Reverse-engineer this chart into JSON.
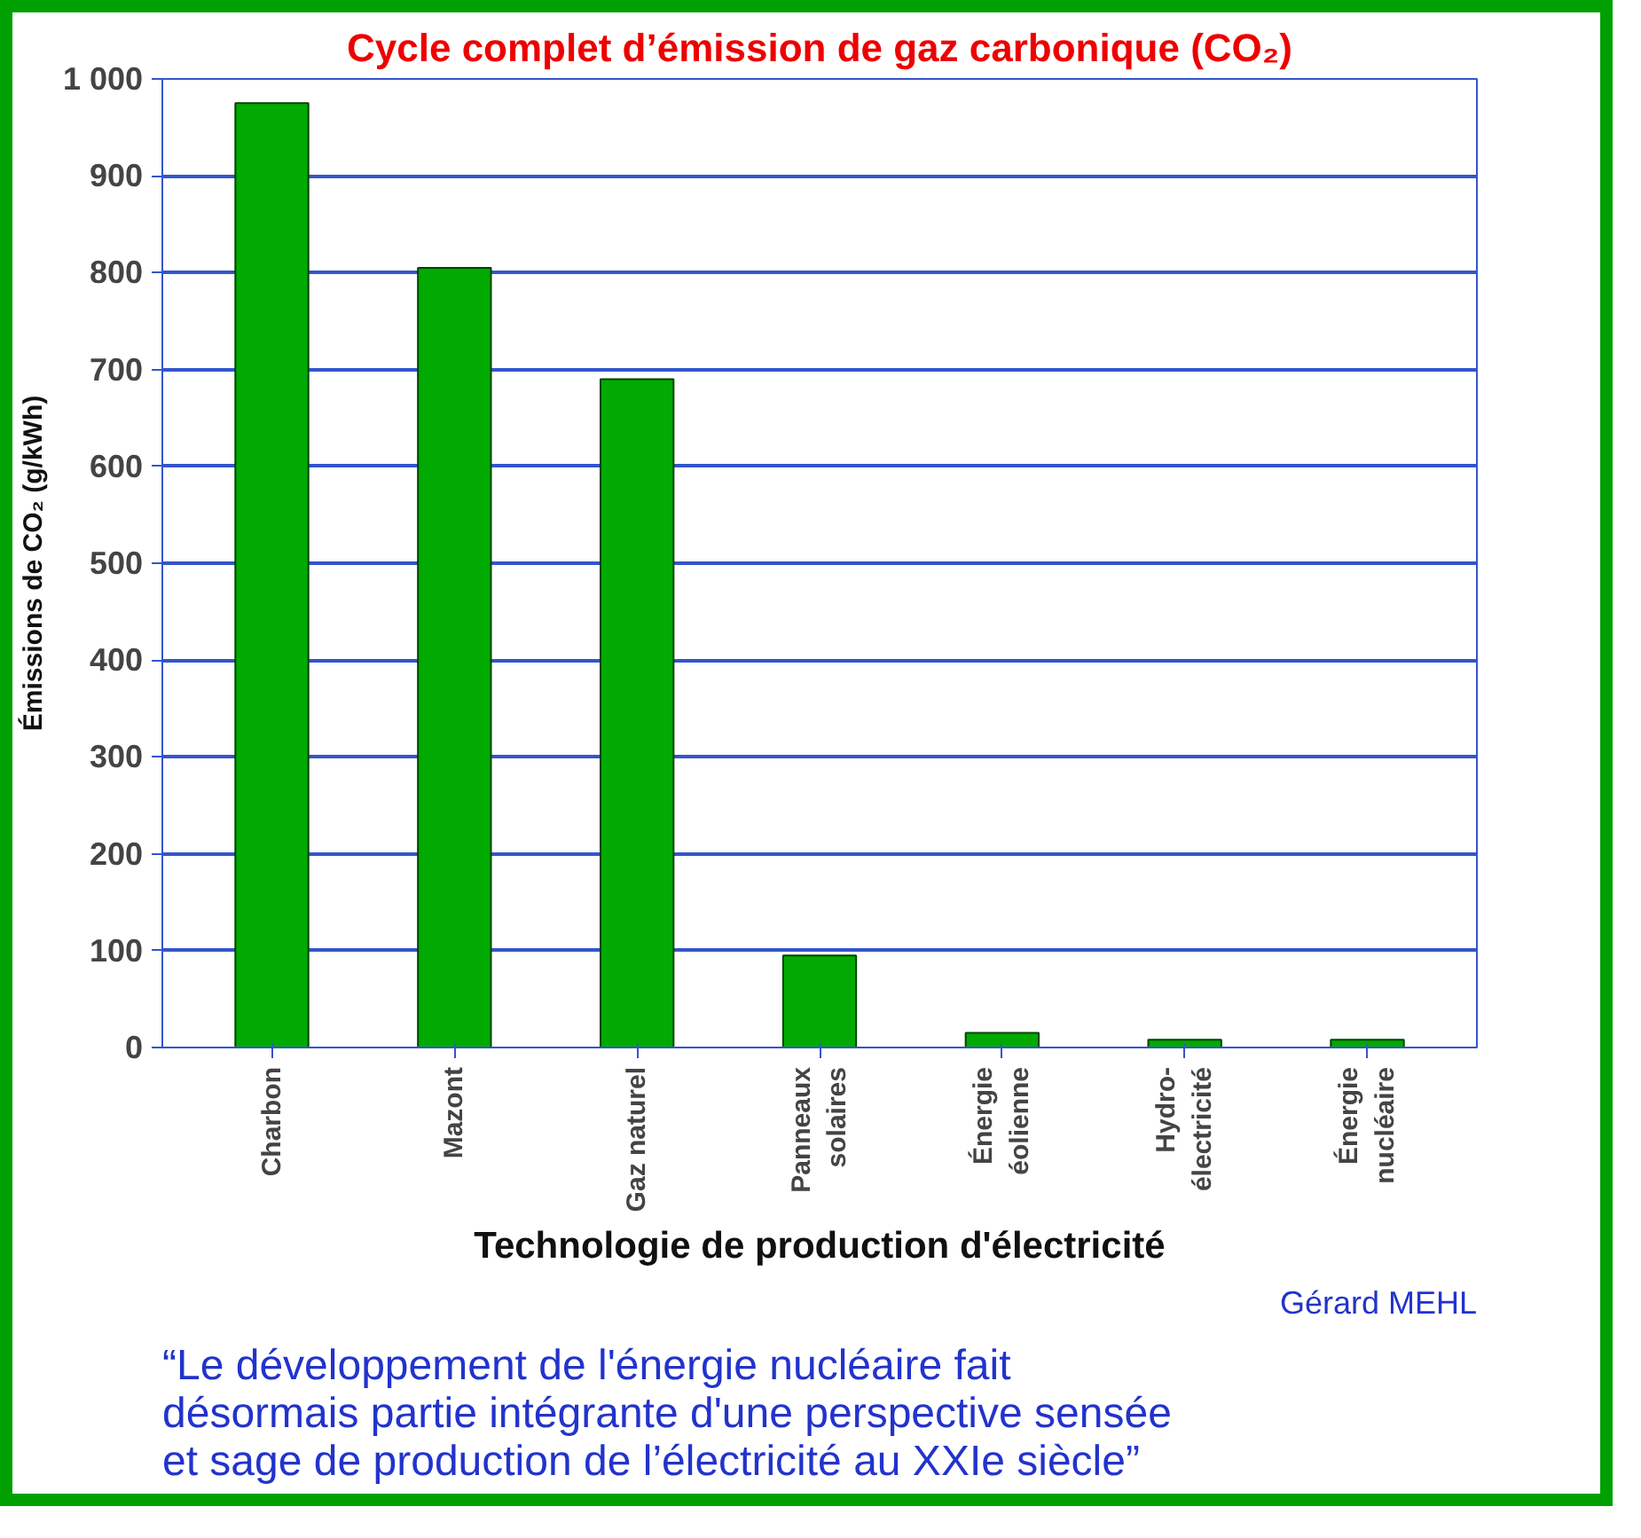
{
  "chart_data": {
    "type": "bar",
    "title": "Cycle complet d’émission de gaz carbonique (CO₂)",
    "xlabel": "Technologie de production d'électricité",
    "ylabel": "Émissions de CO₂ (g/kWh)",
    "categories": [
      "Charbon",
      "Mazont",
      "Gaz naturel",
      "Panneaux\nsolaires",
      "Énergie\néolienne",
      "Hydro-\nélectricité",
      "Énergie\nnucléaire"
    ],
    "values": [
      975,
      805,
      690,
      95,
      15,
      8,
      8
    ],
    "color": "#00aa00",
    "ylim": [
      0,
      1000
    ],
    "yticks": [
      0,
      100,
      200,
      300,
      400,
      500,
      600,
      700,
      800,
      900,
      {
        "value": 1000,
        "label": "1 000"
      }
    ],
    "grid": "y",
    "annotations": [
      "“Le développement de l'énergie nucléaire fait\ndésormais partie intégrante d'une perspective sensée\net sage de production de l’électricité au XXIe siècle”",
      "Gérard MEHL"
    ]
  }
}
